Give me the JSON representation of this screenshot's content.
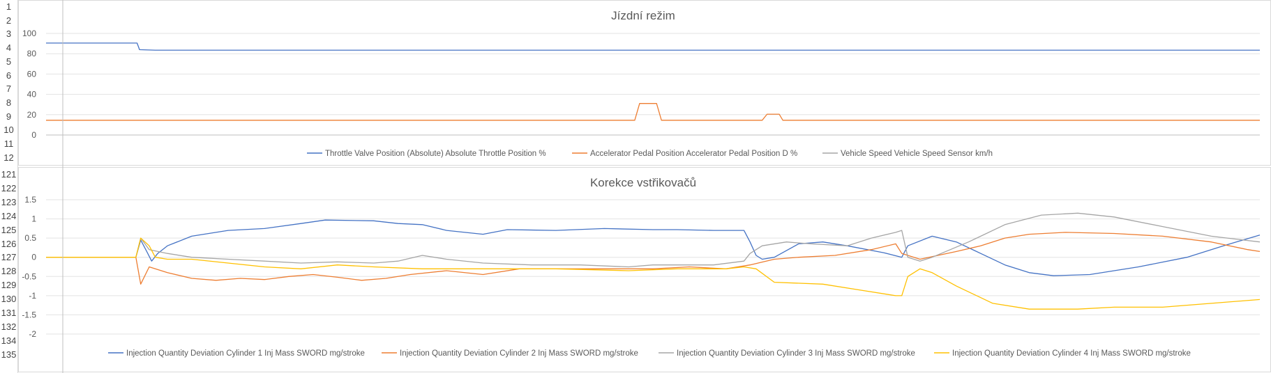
{
  "row_headers": {
    "top": [
      "1",
      "2",
      "3",
      "4",
      "5",
      "6",
      "7",
      "8",
      "9",
      "10",
      "11",
      "12"
    ],
    "bottom": [
      "121",
      "122",
      "123",
      "124",
      "125",
      "126",
      "127",
      "128",
      "129",
      "130",
      "131",
      "132",
      "134",
      "135"
    ]
  },
  "chart_data": [
    {
      "type": "line",
      "title": "Jízdní režim",
      "ylim": [
        0,
        100
      ],
      "yticks": [
        "100",
        "80",
        "60",
        "40",
        "20",
        "0"
      ],
      "grid": true,
      "legend": "bottom",
      "series": [
        {
          "name": "Throttle Valve Position (Absolute) Absolute Throttle Position %",
          "color": "#4472c4",
          "points": [
            [
              0,
              90.5
            ],
            [
              0.075,
              90.5
            ],
            [
              0.077,
              84
            ],
            [
              0.09,
              83.5
            ],
            [
              1,
              83.5
            ]
          ]
        },
        {
          "name": "Accelerator Pedal Position Accelerator Pedal Position D %",
          "color": "#ed7d31",
          "points": [
            [
              0,
              14.5
            ],
            [
              0.485,
              14.5
            ],
            [
              0.489,
              31
            ],
            [
              0.503,
              31
            ],
            [
              0.507,
              14.5
            ],
            [
              0.59,
              14.5
            ],
            [
              0.594,
              20.5
            ],
            [
              0.604,
              20.5
            ],
            [
              0.607,
              14.5
            ],
            [
              1,
              14.5
            ]
          ]
        },
        {
          "name": "Vehicle Speed Vehicle Speed Sensor km/h",
          "color": "#a5a5a5",
          "points": []
        }
      ]
    },
    {
      "type": "line",
      "title": "Korekce vstřikovačů",
      "ylim": [
        -2,
        1.5
      ],
      "yticks": [
        "1.5",
        "1",
        "0.5",
        "0",
        "-0.5",
        "-1",
        "-1.5",
        "-2"
      ],
      "grid": true,
      "legend": "bottom",
      "series": [
        {
          "name": "Injection Quantity Deviation Cylinder 1 Inj Mass SWORD mg/stroke",
          "color": "#4472c4",
          "points": [
            [
              0,
              0
            ],
            [
              0.074,
              0
            ],
            [
              0.078,
              0.45
            ],
            [
              0.083,
              0.15
            ],
            [
              0.087,
              -0.1
            ],
            [
              0.092,
              0.1
            ],
            [
              0.1,
              0.3
            ],
            [
              0.12,
              0.55
            ],
            [
              0.15,
              0.7
            ],
            [
              0.18,
              0.75
            ],
            [
              0.21,
              0.88
            ],
            [
              0.23,
              0.97
            ],
            [
              0.27,
              0.95
            ],
            [
              0.29,
              0.88
            ],
            [
              0.31,
              0.85
            ],
            [
              0.33,
              0.7
            ],
            [
              0.36,
              0.6
            ],
            [
              0.38,
              0.72
            ],
            [
              0.42,
              0.7
            ],
            [
              0.46,
              0.75
            ],
            [
              0.5,
              0.72
            ],
            [
              0.52,
              0.72
            ],
            [
              0.55,
              0.7
            ],
            [
              0.575,
              0.7
            ],
            [
              0.58,
              0.4
            ],
            [
              0.585,
              0.05
            ],
            [
              0.59,
              -0.05
            ],
            [
              0.6,
              0
            ],
            [
              0.62,
              0.35
            ],
            [
              0.64,
              0.4
            ],
            [
              0.66,
              0.3
            ],
            [
              0.69,
              0.12
            ],
            [
              0.705,
              0
            ],
            [
              0.71,
              0.3
            ],
            [
              0.73,
              0.55
            ],
            [
              0.75,
              0.4
            ],
            [
              0.77,
              0.1
            ],
            [
              0.79,
              -0.2
            ],
            [
              0.81,
              -0.4
            ],
            [
              0.83,
              -0.48
            ],
            [
              0.86,
              -0.45
            ],
            [
              0.9,
              -0.25
            ],
            [
              0.94,
              0
            ],
            [
              0.97,
              0.3
            ],
            [
              1,
              0.58
            ]
          ]
        },
        {
          "name": "Injection Quantity Deviation Cylinder 2 Inj Mass SWORD mg/stroke",
          "color": "#ed7d31",
          "points": [
            [
              0,
              0
            ],
            [
              0.074,
              0
            ],
            [
              0.078,
              -0.7
            ],
            [
              0.085,
              -0.25
            ],
            [
              0.1,
              -0.4
            ],
            [
              0.12,
              -0.55
            ],
            [
              0.14,
              -0.6
            ],
            [
              0.16,
              -0.55
            ],
            [
              0.18,
              -0.58
            ],
            [
              0.2,
              -0.5
            ],
            [
              0.22,
              -0.45
            ],
            [
              0.24,
              -0.52
            ],
            [
              0.26,
              -0.6
            ],
            [
              0.28,
              -0.55
            ],
            [
              0.3,
              -0.45
            ],
            [
              0.33,
              -0.35
            ],
            [
              0.36,
              -0.45
            ],
            [
              0.39,
              -0.3
            ],
            [
              0.43,
              -0.3
            ],
            [
              0.47,
              -0.3
            ],
            [
              0.5,
              -0.3
            ],
            [
              0.53,
              -0.25
            ],
            [
              0.56,
              -0.3
            ],
            [
              0.58,
              -0.2
            ],
            [
              0.6,
              -0.05
            ],
            [
              0.62,
              0
            ],
            [
              0.65,
              0.05
            ],
            [
              0.68,
              0.2
            ],
            [
              0.7,
              0.35
            ],
            [
              0.705,
              0.1
            ],
            [
              0.72,
              -0.05
            ],
            [
              0.75,
              0.15
            ],
            [
              0.77,
              0.3
            ],
            [
              0.79,
              0.5
            ],
            [
              0.81,
              0.6
            ],
            [
              0.84,
              0.65
            ],
            [
              0.88,
              0.62
            ],
            [
              0.92,
              0.55
            ],
            [
              0.96,
              0.4
            ],
            [
              0.99,
              0.2
            ],
            [
              1,
              0.15
            ]
          ]
        },
        {
          "name": "Injection Quantity Deviation Cylinder 3 Inj Mass SWORD mg/stroke",
          "color": "#a5a5a5",
          "points": [
            [
              0,
              0
            ],
            [
              0.074,
              0
            ],
            [
              0.078,
              0.5
            ],
            [
              0.085,
              0.2
            ],
            [
              0.1,
              0.1
            ],
            [
              0.12,
              0
            ],
            [
              0.15,
              -0.05
            ],
            [
              0.18,
              -0.1
            ],
            [
              0.21,
              -0.15
            ],
            [
              0.24,
              -0.12
            ],
            [
              0.27,
              -0.15
            ],
            [
              0.29,
              -0.1
            ],
            [
              0.31,
              0.05
            ],
            [
              0.33,
              -0.05
            ],
            [
              0.36,
              -0.15
            ],
            [
              0.4,
              -0.2
            ],
            [
              0.44,
              -0.2
            ],
            [
              0.48,
              -0.25
            ],
            [
              0.5,
              -0.2
            ],
            [
              0.55,
              -0.2
            ],
            [
              0.575,
              -0.1
            ],
            [
              0.58,
              0.1
            ],
            [
              0.59,
              0.3
            ],
            [
              0.61,
              0.4
            ],
            [
              0.63,
              0.35
            ],
            [
              0.66,
              0.3
            ],
            [
              0.68,
              0.5
            ],
            [
              0.7,
              0.65
            ],
            [
              0.705,
              0.7
            ],
            [
              0.71,
              0
            ],
            [
              0.72,
              -0.1
            ],
            [
              0.73,
              0
            ],
            [
              0.76,
              0.4
            ],
            [
              0.79,
              0.85
            ],
            [
              0.82,
              1.1
            ],
            [
              0.85,
              1.15
            ],
            [
              0.88,
              1.05
            ],
            [
              0.92,
              0.8
            ],
            [
              0.96,
              0.55
            ],
            [
              1,
              0.4
            ]
          ]
        },
        {
          "name": "Injection Quantity Deviation Cylinder 4 Inj Mass SWORD mg/stroke",
          "color": "#ffc000",
          "points": [
            [
              0,
              0
            ],
            [
              0.074,
              0
            ],
            [
              0.078,
              0.5
            ],
            [
              0.085,
              0.3
            ],
            [
              0.09,
              0
            ],
            [
              0.1,
              -0.05
            ],
            [
              0.12,
              -0.05
            ],
            [
              0.15,
              -0.15
            ],
            [
              0.18,
              -0.25
            ],
            [
              0.21,
              -0.3
            ],
            [
              0.24,
              -0.2
            ],
            [
              0.27,
              -0.25
            ],
            [
              0.31,
              -0.3
            ],
            [
              0.36,
              -0.3
            ],
            [
              0.42,
              -0.3
            ],
            [
              0.48,
              -0.35
            ],
            [
              0.52,
              -0.3
            ],
            [
              0.56,
              -0.3
            ],
            [
              0.575,
              -0.25
            ],
            [
              0.585,
              -0.3
            ],
            [
              0.6,
              -0.65
            ],
            [
              0.64,
              -0.7
            ],
            [
              0.67,
              -0.85
            ],
            [
              0.7,
              -1
            ],
            [
              0.705,
              -1
            ],
            [
              0.71,
              -0.5
            ],
            [
              0.72,
              -0.3
            ],
            [
              0.73,
              -0.4
            ],
            [
              0.75,
              -0.75
            ],
            [
              0.78,
              -1.2
            ],
            [
              0.81,
              -1.35
            ],
            [
              0.85,
              -1.35
            ],
            [
              0.88,
              -1.3
            ],
            [
              0.92,
              -1.3
            ],
            [
              0.96,
              -1.2
            ],
            [
              1,
              -1.1
            ]
          ]
        }
      ]
    }
  ]
}
